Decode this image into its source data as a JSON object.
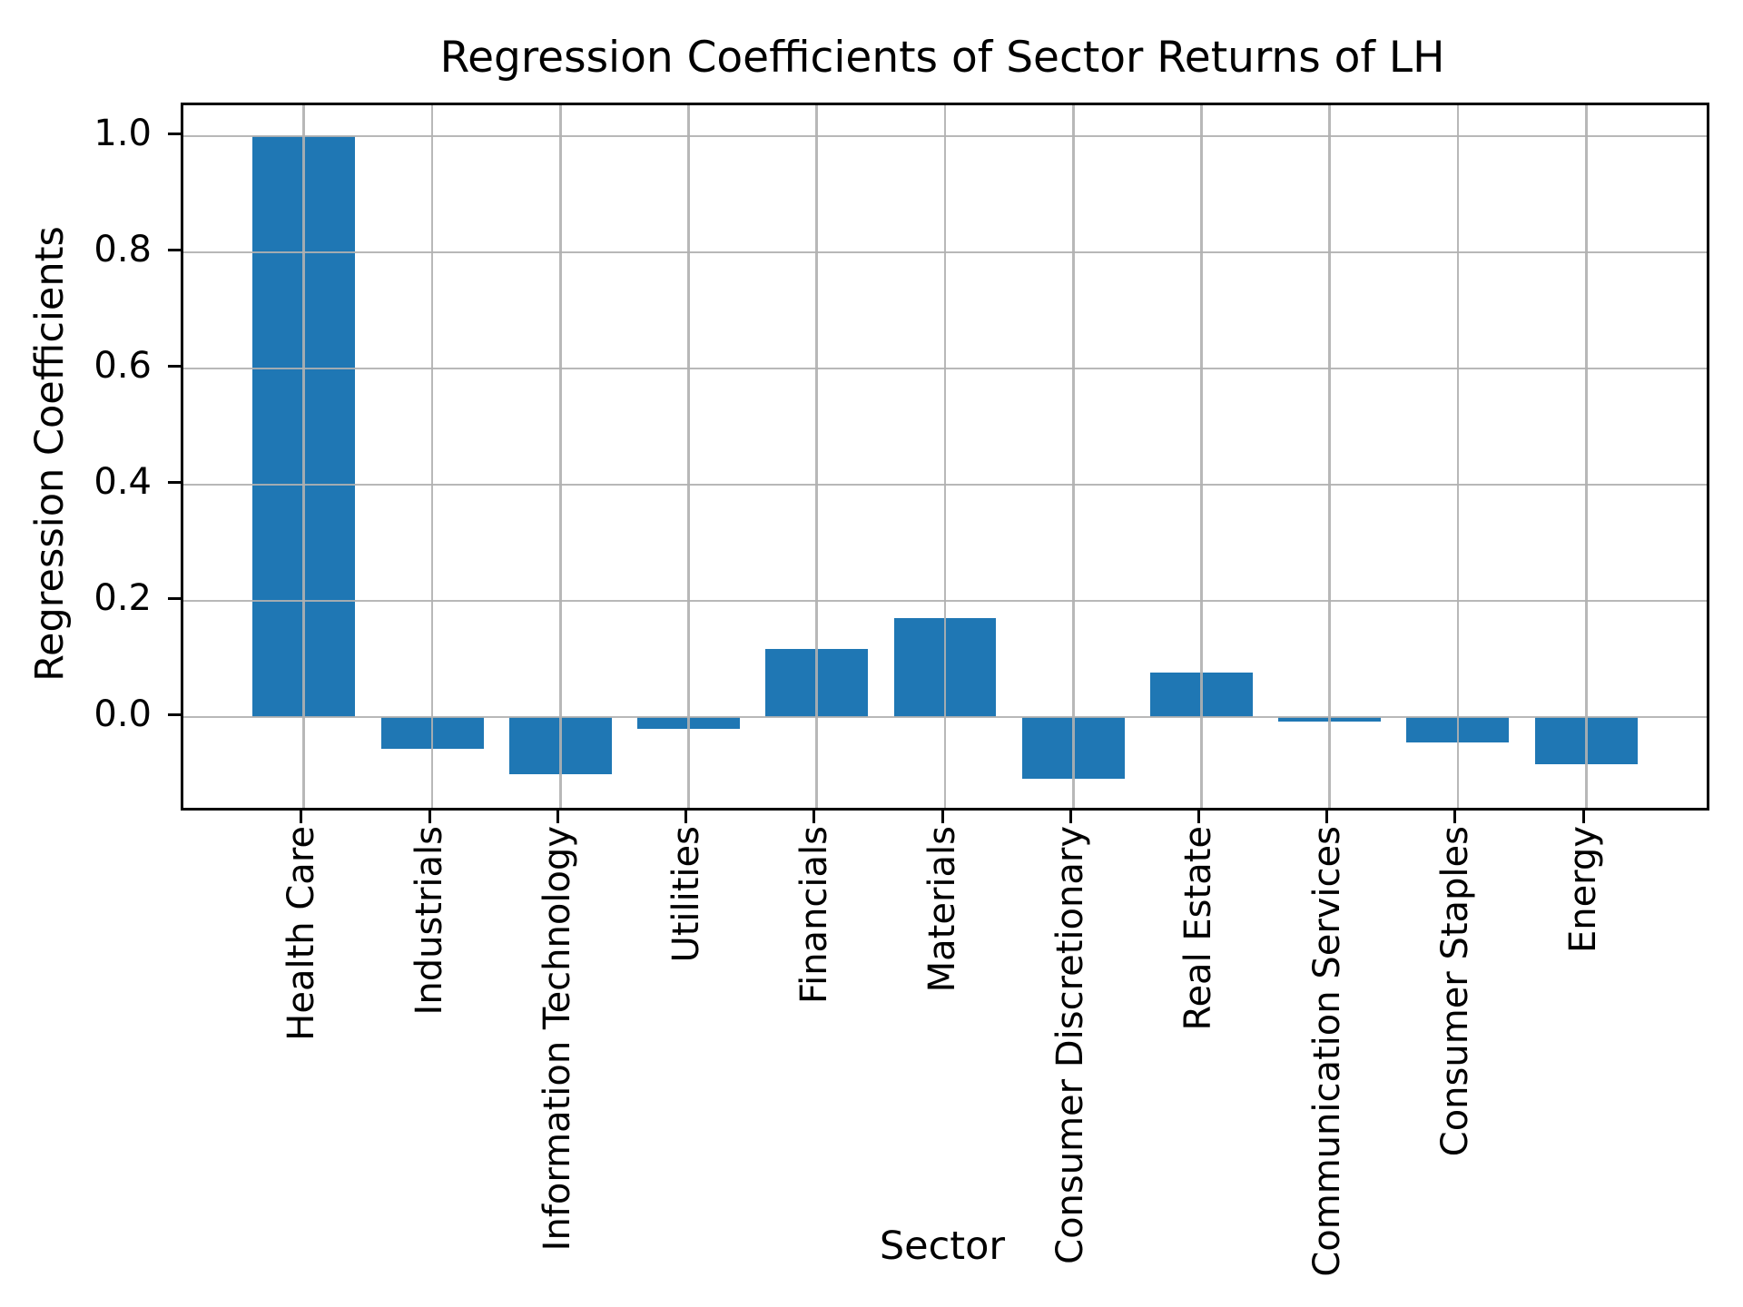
{
  "chart_data": {
    "type": "bar",
    "title": "Regression Coefficients of Sector Returns of LH",
    "xlabel": "Sector",
    "ylabel": "Regression Coefficients",
    "categories": [
      "Health Care",
      "Industrials",
      "Information Technology",
      "Utilities",
      "Financials",
      "Materials",
      "Consumer Discretionary",
      "Real Estate",
      "Communication Services",
      "Consumer Staples",
      "Energy"
    ],
    "values": [
      1.0,
      -0.055,
      -0.098,
      -0.02,
      0.117,
      0.17,
      -0.106,
      0.077,
      -0.008,
      -0.043,
      -0.081
    ],
    "yticks": [
      {
        "label": "0.0",
        "value": 0.0
      },
      {
        "label": "0.2",
        "value": 0.2
      },
      {
        "label": "0.4",
        "value": 0.4
      },
      {
        "label": "0.6",
        "value": 0.6
      },
      {
        "label": "0.8",
        "value": 0.8
      },
      {
        "label": "1.0",
        "value": 1.0
      }
    ],
    "ylim": [
      -0.15625,
      1.053125
    ],
    "xlim": [
      -0.94,
      10.94
    ],
    "bar_width": 0.8,
    "grid": true,
    "grid_above_bars": true,
    "legend_position": "none",
    "colors": {
      "bar": "#1f77b4",
      "grid": "#b0b0b0",
      "spine": "#000000",
      "text": "#000000",
      "background": "#ffffff"
    }
  }
}
